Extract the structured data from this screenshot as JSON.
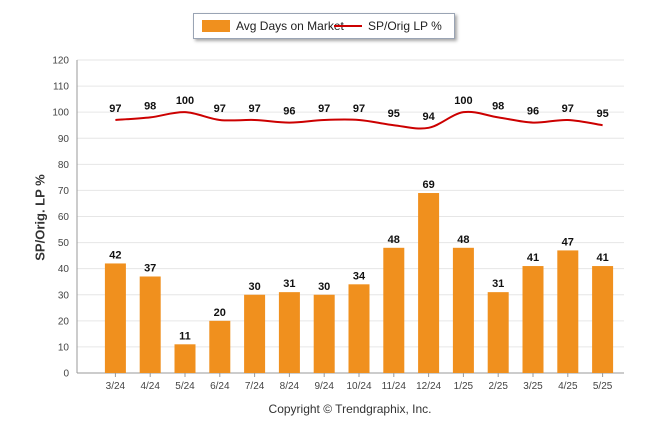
{
  "colors": {
    "bar": "#F0901E",
    "line": "#CC0000",
    "grid": "#e6e6e6",
    "axis": "#555555"
  },
  "legend": {
    "bar_label": "Avg Days on Market",
    "line_label": "SP/Orig LP %"
  },
  "footer": {
    "copyright": "Copyright © Trendgraphix, Inc."
  },
  "chart_data": {
    "type": "bar",
    "title": "",
    "xlabel": "",
    "ylabel": "SP/Orig. LP %",
    "ylim": [
      0,
      120
    ],
    "yticks": [
      0,
      10,
      20,
      30,
      40,
      50,
      60,
      70,
      80,
      90,
      100,
      110,
      120
    ],
    "grid": true,
    "legend_position": "top-center",
    "categories": [
      "3/24",
      "4/24",
      "5/24",
      "6/24",
      "7/24",
      "8/24",
      "9/24",
      "10/24",
      "11/24",
      "12/24",
      "1/25",
      "2/25",
      "3/25",
      "4/25",
      "5/25"
    ],
    "series": [
      {
        "name": "Avg Days on Market",
        "type": "bar",
        "values": [
          42,
          37,
          11,
          20,
          30,
          31,
          30,
          34,
          48,
          69,
          48,
          31,
          41,
          47,
          41
        ]
      },
      {
        "name": "SP/Orig LP %",
        "type": "line",
        "values": [
          97,
          98,
          100,
          97,
          97,
          96,
          97,
          97,
          95,
          94,
          100,
          98,
          96,
          97,
          95
        ]
      }
    ]
  }
}
